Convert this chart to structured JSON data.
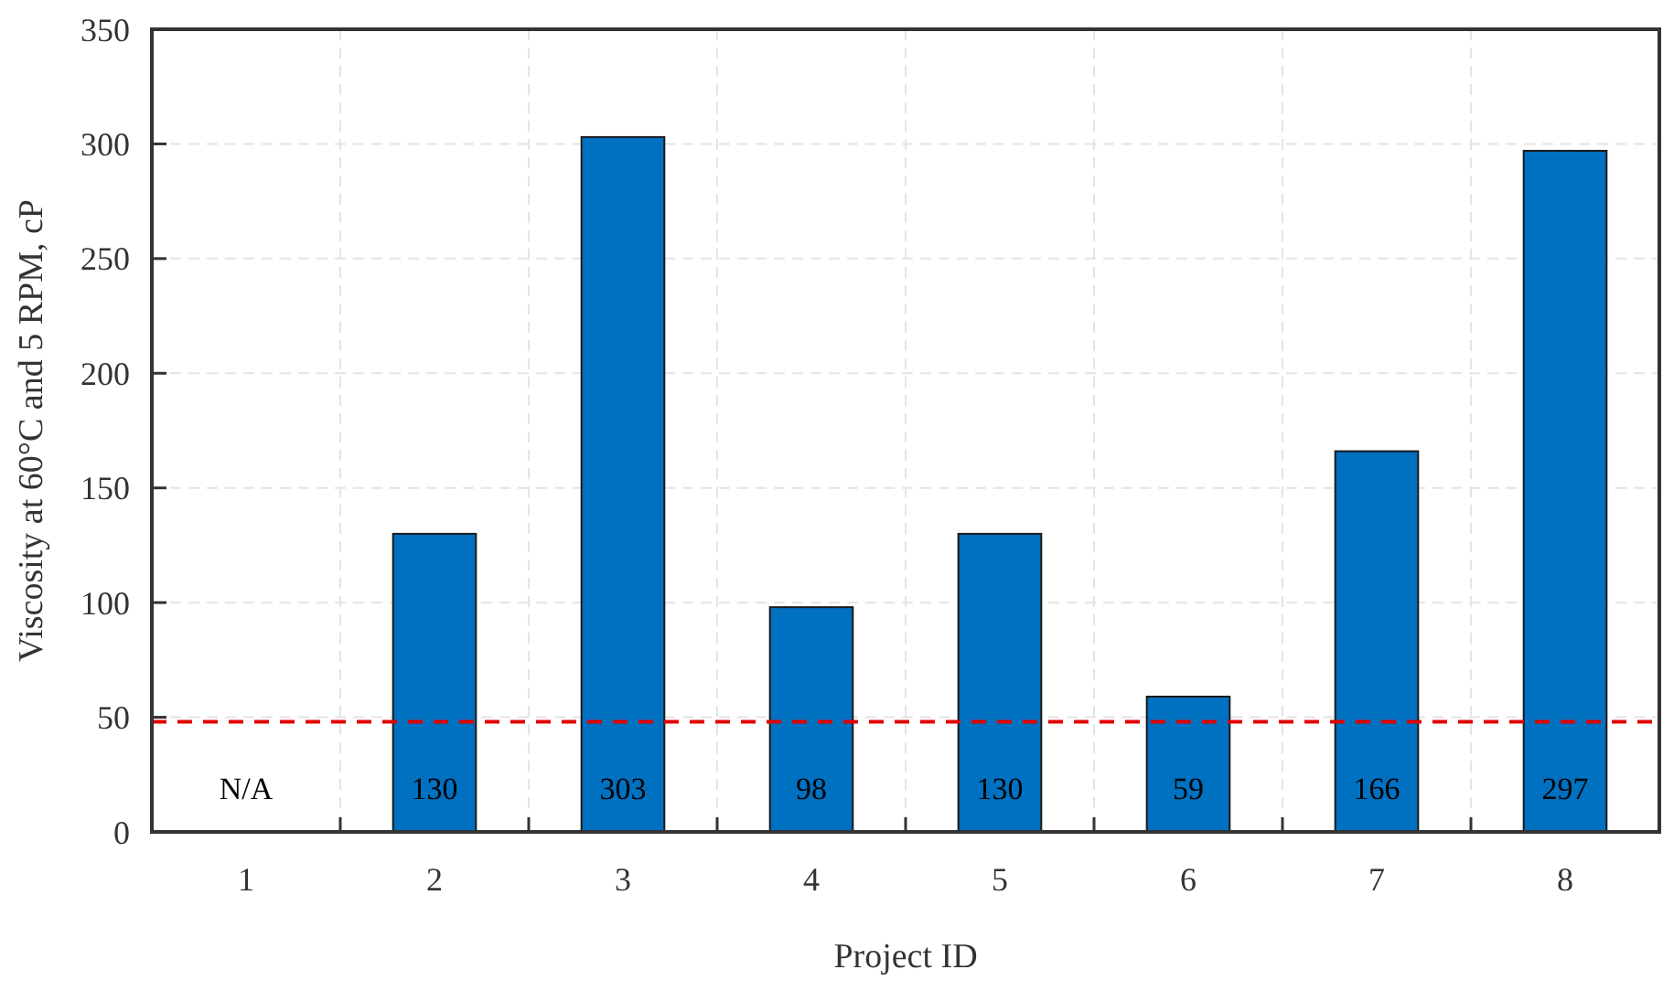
{
  "chart_data": {
    "type": "bar",
    "xlabel": "Project ID",
    "ylabel": "Viscosity at 60°C and 5 RPM, cP",
    "categories": [
      "1",
      "2",
      "3",
      "4",
      "5",
      "6",
      "7",
      "8"
    ],
    "values": [
      null,
      130,
      303,
      98,
      130,
      59,
      166,
      297
    ],
    "value_labels": [
      "N/A",
      "130",
      "303",
      "98",
      "130",
      "59",
      "166",
      "297"
    ],
    "color": "#0070c0",
    "ylim": [
      0,
      350
    ],
    "yticks": [
      0,
      50,
      100,
      150,
      200,
      250,
      300,
      350
    ],
    "grid": true,
    "ref_lines": [
      {
        "axis": "y",
        "value": 48,
        "color": "#e00000",
        "line_style": "dashed"
      }
    ]
  }
}
